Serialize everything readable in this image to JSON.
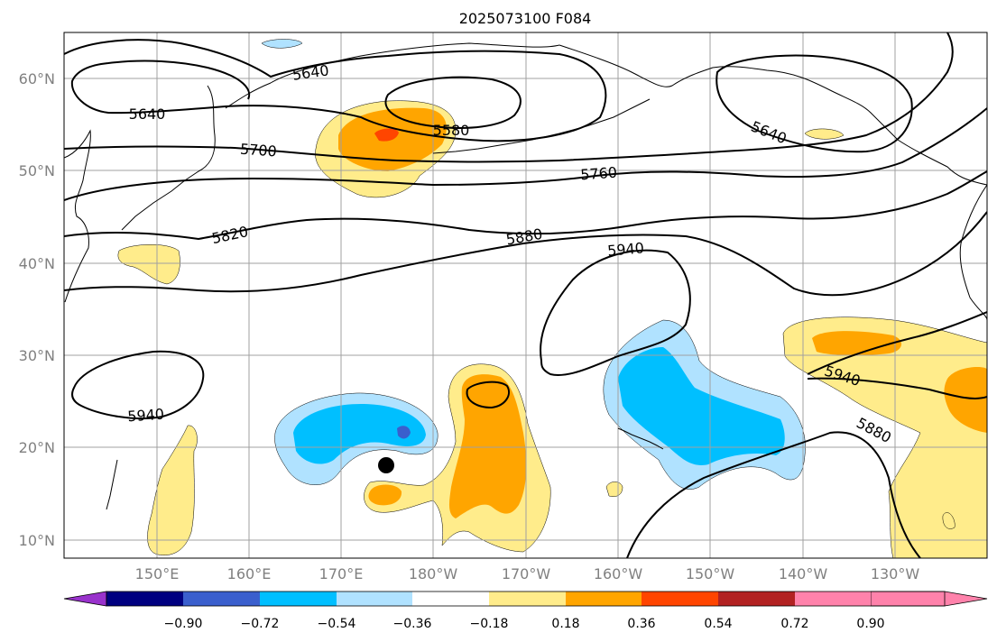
{
  "title": "2025073100 F084",
  "axes": {
    "lat_labels": [
      "60°N",
      "50°N",
      "40°N",
      "30°N",
      "20°N",
      "10°N"
    ],
    "lon_labels": [
      "150°E",
      "160°E",
      "170°E",
      "180°W",
      "170°W",
      "160°W",
      "150°W",
      "140°W",
      "130°W"
    ],
    "label_color": "#808080",
    "gridlines": true
  },
  "contours": {
    "color": "#000000",
    "labels": [
      {
        "name": "contour-label-5640-west",
        "text": "5640"
      },
      {
        "name": "contour-label-5640-north",
        "text": "5640"
      },
      {
        "name": "contour-label-5580",
        "text": "5580"
      },
      {
        "name": "contour-label-5700",
        "text": "5700"
      },
      {
        "name": "contour-label-5760",
        "text": "5760"
      },
      {
        "name": "contour-label-5820",
        "text": "5820"
      },
      {
        "name": "contour-label-5880",
        "text": "5880"
      },
      {
        "name": "contour-label-5940-center",
        "text": "5940"
      },
      {
        "name": "contour-label-5640-east",
        "text": "5640"
      },
      {
        "name": "contour-label-5940-west",
        "text": "5940"
      },
      {
        "name": "contour-label-5940-east",
        "text": "5940"
      },
      {
        "name": "contour-label-5880-east",
        "text": "5880"
      }
    ]
  },
  "colorbar": {
    "extend": "both",
    "tick_labels": [
      "−0.90",
      "−0.72",
      "−0.54",
      "−0.36",
      "−0.18",
      "0.18",
      "0.36",
      "0.54",
      "0.72",
      "0.90"
    ],
    "colors": [
      "#9932cc",
      "#000080",
      "#3a5fcd",
      "#00bfff",
      "#b0e2ff",
      "#ffffff",
      "#ffec8b",
      "#ffa500",
      "#ff4500",
      "#b22222",
      "#ff82ab"
    ]
  },
  "marker": {
    "name": "storm-center-dot",
    "color": "#000000"
  }
}
